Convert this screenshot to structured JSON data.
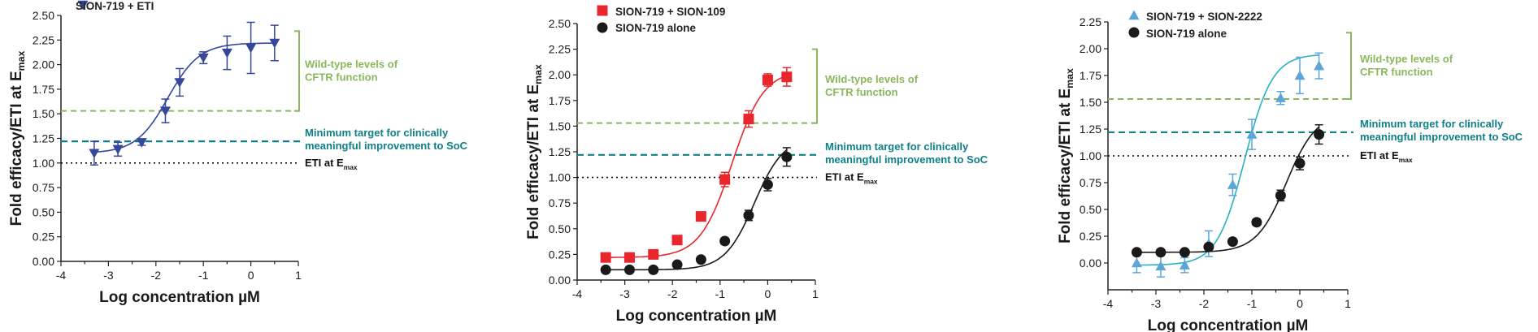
{
  "colors": {
    "eti_series": "#34479b",
    "sion109_series": "#e8262b",
    "alone_series": "#1a1a1a",
    "sion2222_series": "#5ca5d6",
    "sion2222_line": "#28b1c4",
    "wildtype": "#8ab75c",
    "minimum_target": "#0f7f88",
    "eti_emax": "#000000"
  },
  "chart_data": [
    {
      "type": "line",
      "xlabel": "Log concentration µM",
      "ylabel_main": "Fold efficacy/ETI at E",
      "ylabel_sub": "max",
      "xlim": [
        -4,
        1
      ],
      "ylim": [
        0,
        2.5
      ],
      "xticks": [
        "-4",
        "-3",
        "-2",
        "-1",
        "0",
        "1"
      ],
      "yticks": [
        "0.00",
        "0.25",
        "0.50",
        "0.75",
        "1.00",
        "1.25",
        "1.50",
        "1.75",
        "2.00",
        "2.25",
        "2.50"
      ],
      "series": [
        {
          "name": "SION-719 + ETI",
          "marker": "triangle-down",
          "color": "#34479b",
          "x": [
            -3.3,
            -2.8,
            -2.3,
            -1.8,
            -1.5,
            -1.0,
            -0.5,
            0.0,
            0.5
          ],
          "y": [
            1.1,
            1.14,
            1.21,
            1.53,
            1.82,
            2.07,
            2.12,
            2.17,
            2.22
          ],
          "err": [
            0.12,
            0.07,
            0.03,
            0.12,
            0.14,
            0.06,
            0.17,
            0.26,
            0.18
          ],
          "fit": {
            "bottom": 1.1,
            "top": 2.22,
            "logec50": -1.75,
            "hill": 1.3
          }
        }
      ],
      "annotations": {
        "wildtype_level": 1.53,
        "min_target_level": 1.22,
        "eti_level": 1.0,
        "wildtype_text": [
          "Wild-type levels of",
          "CFTR function"
        ],
        "min_target_text": [
          "Minimum target for clinically",
          "meaningful improvement to SoC"
        ],
        "eti_text": "ETI at E",
        "eti_text_sub": "max"
      }
    },
    {
      "type": "line",
      "xlabel": "Log concentration µM",
      "ylabel_main": "Fold efficacy/ETI at E",
      "ylabel_sub": "max",
      "xlim": [
        -4,
        1
      ],
      "ylim": [
        0,
        2.5
      ],
      "xticks": [
        "-4",
        "-3",
        "-2",
        "-1",
        "0",
        "1"
      ],
      "yticks": [
        "0.00",
        "0.25",
        "0.50",
        "0.75",
        "1.00",
        "1.25",
        "1.50",
        "1.75",
        "2.00",
        "2.25",
        "2.50"
      ],
      "series": [
        {
          "name": "SION-719 + SION-109",
          "marker": "square",
          "color": "#e8262b",
          "x": [
            -3.4,
            -2.9,
            -2.4,
            -1.9,
            -1.4,
            -0.9,
            -0.4,
            0.0,
            0.4
          ],
          "y": [
            0.22,
            0.22,
            0.25,
            0.39,
            0.62,
            0.98,
            1.57,
            1.95,
            1.98
          ],
          "err": [
            0.02,
            0.02,
            0.02,
            0.03,
            0.03,
            0.07,
            0.08,
            0.06,
            0.09
          ],
          "fit": {
            "bottom": 0.22,
            "top": 2.05,
            "logec50": -0.75,
            "hill": 1.3
          }
        },
        {
          "name": "SION-719 alone",
          "marker": "circle",
          "color": "#1a1a1a",
          "x": [
            -3.4,
            -2.9,
            -2.4,
            -1.9,
            -1.4,
            -0.9,
            -0.4,
            0.0,
            0.4
          ],
          "y": [
            0.1,
            0.1,
            0.1,
            0.15,
            0.2,
            0.38,
            0.63,
            0.93,
            1.2
          ],
          "err": [
            0.01,
            0.01,
            0.01,
            0.01,
            0.02,
            0.03,
            0.05,
            0.06,
            0.09
          ],
          "fit": {
            "bottom": 0.1,
            "top": 1.4,
            "logec50": -0.28,
            "hill": 1.4
          }
        }
      ],
      "annotations": {
        "wildtype_level": 1.53,
        "min_target_level": 1.22,
        "eti_level": 1.0,
        "wildtype_text": [
          "Wild-type levels of",
          "CFTR function"
        ],
        "min_target_text": [
          "Minimum target for clinically",
          "meaningful improvement to SoC"
        ],
        "eti_text": "ETI at E",
        "eti_text_sub": "max"
      }
    },
    {
      "type": "line",
      "xlabel": "Log concentration µM",
      "ylabel_main": "Fold efficacy/ETI at E",
      "ylabel_sub": "max",
      "xlim": [
        -4,
        1
      ],
      "ylim": [
        -0.25,
        2.25
      ],
      "xticks": [
        "-4",
        "-3",
        "-2",
        "-1",
        "0",
        "1"
      ],
      "yticks": [
        "0.00",
        "0.25",
        "0.50",
        "0.75",
        "1.00",
        "1.25",
        "1.50",
        "1.75",
        "2.00",
        "2.25"
      ],
      "series": [
        {
          "name": "SION-719 + SION-2222",
          "marker": "triangle-up",
          "color": "#5ca5d6",
          "x": [
            -3.4,
            -2.9,
            -2.4,
            -1.9,
            -1.4,
            -1.0,
            -0.4,
            0.0,
            0.4
          ],
          "y": [
            0.0,
            -0.03,
            -0.02,
            0.18,
            0.73,
            1.2,
            1.54,
            1.75,
            1.84
          ],
          "err": [
            0.09,
            0.1,
            0.07,
            0.12,
            0.1,
            0.14,
            0.06,
            0.17,
            0.12
          ],
          "fit": {
            "bottom": -0.02,
            "top": 1.95,
            "logec50": -1.15,
            "hill": 1.5
          }
        },
        {
          "name": "SION-719 alone",
          "marker": "circle",
          "color": "#1a1a1a",
          "x": [
            -3.4,
            -2.9,
            -2.4,
            -1.9,
            -1.4,
            -0.9,
            -0.4,
            0.0,
            0.4
          ],
          "y": [
            0.1,
            0.1,
            0.1,
            0.15,
            0.2,
            0.38,
            0.63,
            0.93,
            1.2
          ],
          "err": [
            0.01,
            0.01,
            0.01,
            0.01,
            0.02,
            0.03,
            0.05,
            0.06,
            0.09
          ],
          "fit": {
            "bottom": 0.1,
            "top": 1.4,
            "logec50": -0.28,
            "hill": 1.4
          }
        }
      ],
      "annotations": {
        "wildtype_level": 1.53,
        "min_target_level": 1.22,
        "eti_level": 1.0,
        "wildtype_text": [
          "Wild-type levels of",
          "CFTR function"
        ],
        "min_target_text": [
          "Minimum target for clinically",
          "meaningful improvement to SoC"
        ],
        "eti_text": "ETI at E",
        "eti_text_sub": "max"
      }
    }
  ]
}
